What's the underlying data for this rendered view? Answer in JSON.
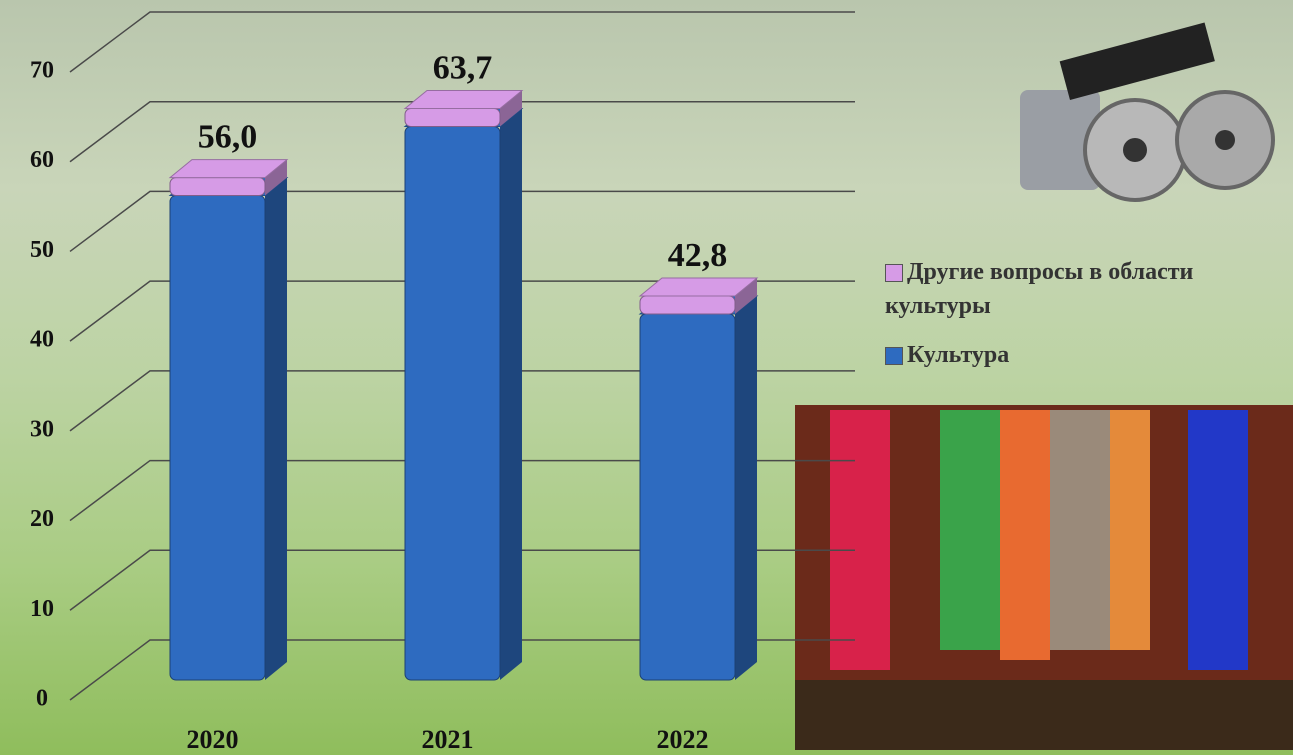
{
  "chart_data": {
    "type": "bar3d_stacked",
    "categories": [
      "2020",
      "2021",
      "2022"
    ],
    "series": [
      {
        "name": "Культура",
        "color": "#2e6bc0",
        "values": [
          54.0,
          61.7,
          40.8
        ]
      },
      {
        "name": "Другие вопросы в области культуры",
        "color": "#d69be6",
        "values": [
          2.0,
          2.0,
          2.0
        ]
      }
    ],
    "totals": [
      56.0,
      63.7,
      42.8
    ],
    "total_labels": [
      "56,0",
      "63,7",
      "42,8"
    ],
    "ylim": [
      0,
      70
    ],
    "yticks": [
      0,
      10,
      20,
      30,
      40,
      50,
      60,
      70
    ],
    "grid": true
  }
}
